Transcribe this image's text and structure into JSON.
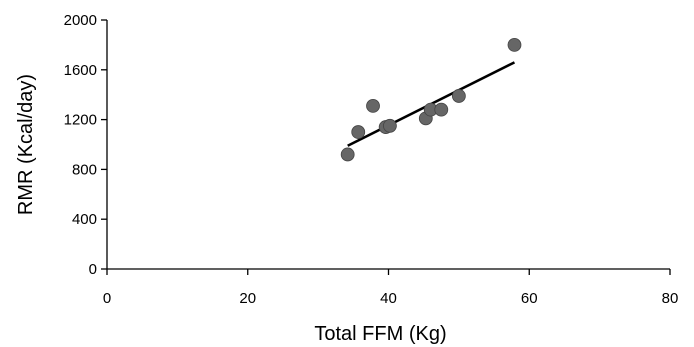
{
  "chart_data": {
    "type": "scatter",
    "title": "",
    "xlabel": "Total FFM (Kg)",
    "ylabel": "RMR (Kcal/day)",
    "xlim": [
      0,
      80
    ],
    "ylim": [
      0,
      2000
    ],
    "x_ticks": [
      0,
      20,
      40,
      60,
      80
    ],
    "y_ticks": [
      0,
      400,
      800,
      1200,
      1600,
      2000
    ],
    "x_tick_labels": [
      "0",
      "20",
      "40",
      "60",
      "80"
    ],
    "y_tick_labels": [
      "0",
      "400",
      "800",
      "1200",
      "1600",
      "2000"
    ],
    "grid": false,
    "legend": "none",
    "points": [
      {
        "x": 34.2,
        "y": 920
      },
      {
        "x": 35.7,
        "y": 1100
      },
      {
        "x": 37.8,
        "y": 1310
      },
      {
        "x": 39.6,
        "y": 1140
      },
      {
        "x": 40.2,
        "y": 1150
      },
      {
        "x": 45.3,
        "y": 1210
      },
      {
        "x": 46.0,
        "y": 1280
      },
      {
        "x": 47.5,
        "y": 1280
      },
      {
        "x": 50.0,
        "y": 1390
      },
      {
        "x": 57.9,
        "y": 1800
      }
    ],
    "trendline": {
      "x": [
        34.2,
        57.9
      ],
      "y": [
        990,
        1660
      ]
    },
    "colors": {
      "points": "#666666",
      "trendline": "#000000",
      "axis": "#000000"
    }
  }
}
